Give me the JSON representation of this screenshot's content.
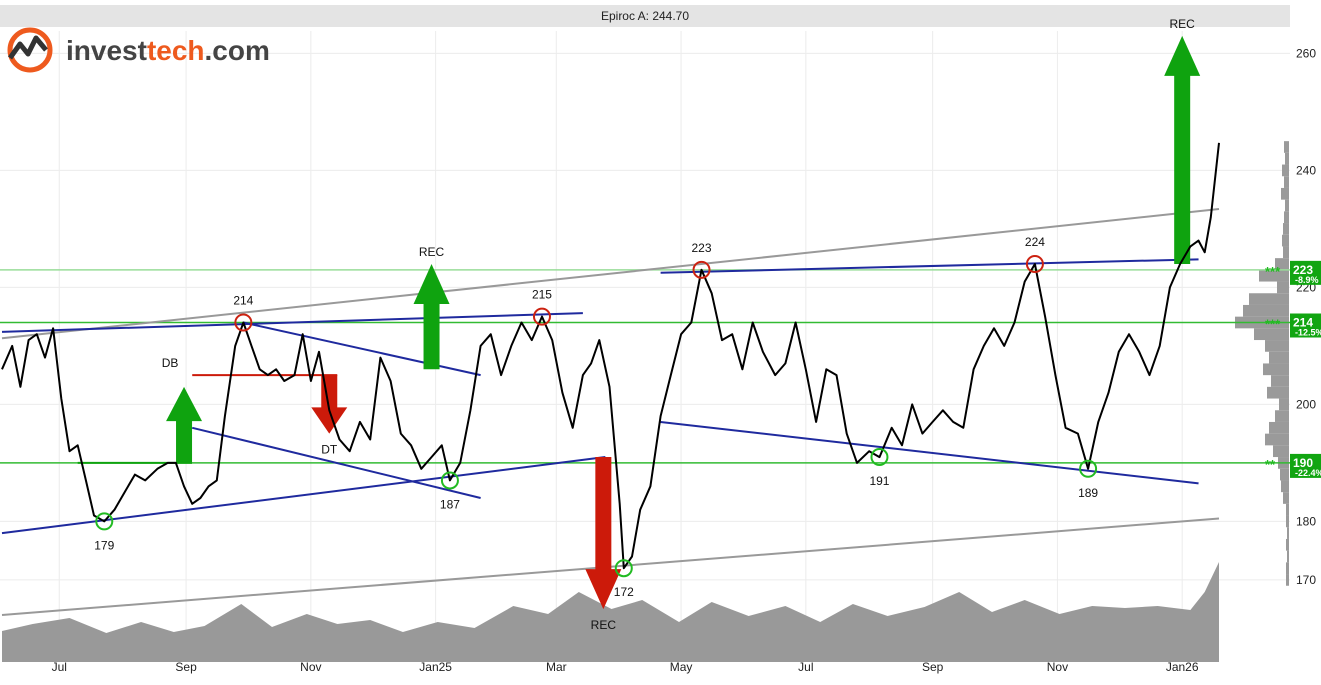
{
  "header": {
    "title": "Epiroc A: 244.70"
  },
  "logo": {
    "text_prefix": "invest",
    "text_accent": "tech",
    "text_suffix": ".com"
  },
  "colors": {
    "price": "#000000",
    "trend_blue": "#1f2a9e",
    "channel_gray": "#999999",
    "support_green": "#22bb22",
    "resist_red": "#cc2211",
    "arrow_green": "#0fa30f",
    "arrow_red": "#cc1a0a",
    "volume": "#999999",
    "logo_orange": "#ee5a1e"
  },
  "chart_data": {
    "type": "line",
    "title": "Epiroc A: 244.70",
    "ylim": [
      162,
      266
    ],
    "y_ticks": [
      170,
      180,
      200,
      220,
      240,
      260
    ],
    "x_ticks": [
      "Jul",
      "Sep",
      "Nov",
      "Jan25",
      "Mar",
      "May",
      "Jul",
      "Sep",
      "Nov",
      "Jan26"
    ],
    "x_tick_dates": [
      "2024-07-01",
      "2024-09-01",
      "2024-11-01",
      "2025-01-01",
      "2025-03-01",
      "2025-05-01",
      "2025-07-01",
      "2025-09-01",
      "2025-11-01",
      "2026-01-01"
    ],
    "series": [
      {
        "values": [
          [
            "2024-06-03",
            206
          ],
          [
            "2024-06-08",
            210
          ],
          [
            "2024-06-12",
            203
          ],
          [
            "2024-06-16",
            211
          ],
          [
            "2024-06-20",
            212
          ],
          [
            "2024-06-24",
            208
          ],
          [
            "2024-06-28",
            213
          ],
          [
            "2024-07-02",
            201
          ],
          [
            "2024-07-06",
            192
          ],
          [
            "2024-07-10",
            193
          ],
          [
            "2024-07-14",
            187
          ],
          [
            "2024-07-18",
            181
          ],
          [
            "2024-07-23",
            180
          ],
          [
            "2024-07-28",
            182
          ],
          [
            "2024-08-02",
            185
          ],
          [
            "2024-08-07",
            188
          ],
          [
            "2024-08-12",
            187
          ],
          [
            "2024-08-18",
            189
          ],
          [
            "2024-08-23",
            190
          ],
          [
            "2024-08-27",
            190
          ],
          [
            "2024-08-31",
            186
          ],
          [
            "2024-09-04",
            183
          ],
          [
            "2024-09-08",
            184
          ],
          [
            "2024-09-12",
            186
          ],
          [
            "2024-09-16",
            187
          ],
          [
            "2024-09-20",
            198
          ],
          [
            "2024-09-25",
            210
          ],
          [
            "2024-09-29",
            214
          ],
          [
            "2024-10-03",
            210
          ],
          [
            "2024-10-07",
            206
          ],
          [
            "2024-10-11",
            205
          ],
          [
            "2024-10-15",
            206
          ],
          [
            "2024-10-19",
            204
          ],
          [
            "2024-10-24",
            205
          ],
          [
            "2024-10-28",
            212
          ],
          [
            "2024-11-01",
            204
          ],
          [
            "2024-11-05",
            209
          ],
          [
            "2024-11-10",
            199
          ],
          [
            "2024-11-15",
            194
          ],
          [
            "2024-11-20",
            192
          ],
          [
            "2024-11-25",
            197
          ],
          [
            "2024-11-30",
            194
          ],
          [
            "2024-12-05",
            208
          ],
          [
            "2024-12-10",
            204
          ],
          [
            "2024-12-15",
            195
          ],
          [
            "2024-12-20",
            193
          ],
          [
            "2024-12-25",
            189
          ],
          [
            "2024-12-30",
            191
          ],
          [
            "2025-01-04",
            193
          ],
          [
            "2025-01-08",
            187
          ],
          [
            "2025-01-13",
            190
          ],
          [
            "2025-01-18",
            199
          ],
          [
            "2025-01-23",
            210
          ],
          [
            "2025-01-28",
            212
          ],
          [
            "2025-02-02",
            205
          ],
          [
            "2025-02-07",
            210
          ],
          [
            "2025-02-12",
            214
          ],
          [
            "2025-02-17",
            211
          ],
          [
            "2025-02-22",
            215
          ],
          [
            "2025-02-27",
            211
          ],
          [
            "2025-03-04",
            202
          ],
          [
            "2025-03-09",
            196
          ],
          [
            "2025-03-14",
            205
          ],
          [
            "2025-03-18",
            207
          ],
          [
            "2025-03-22",
            211
          ],
          [
            "2025-03-27",
            203
          ],
          [
            "2025-04-01",
            183
          ],
          [
            "2025-04-03",
            172
          ],
          [
            "2025-04-07",
            174
          ],
          [
            "2025-04-11",
            182
          ],
          [
            "2025-04-16",
            186
          ],
          [
            "2025-04-21",
            198
          ],
          [
            "2025-04-26",
            205
          ],
          [
            "2025-05-01",
            212
          ],
          [
            "2025-05-06",
            214
          ],
          [
            "2025-05-11",
            223
          ],
          [
            "2025-05-16",
            219
          ],
          [
            "2025-05-21",
            211
          ],
          [
            "2025-05-26",
            212
          ],
          [
            "2025-05-31",
            206
          ],
          [
            "2025-06-05",
            214
          ],
          [
            "2025-06-10",
            209
          ],
          [
            "2025-06-16",
            205
          ],
          [
            "2025-06-21",
            207
          ],
          [
            "2025-06-26",
            214
          ],
          [
            "2025-07-01",
            206
          ],
          [
            "2025-07-06",
            197
          ],
          [
            "2025-07-11",
            206
          ],
          [
            "2025-07-16",
            205
          ],
          [
            "2025-07-21",
            195
          ],
          [
            "2025-07-26",
            190
          ],
          [
            "2025-08-01",
            192
          ],
          [
            "2025-08-06",
            191
          ],
          [
            "2025-08-12",
            196
          ],
          [
            "2025-08-17",
            193
          ],
          [
            "2025-08-22",
            200
          ],
          [
            "2025-08-27",
            195
          ],
          [
            "2025-09-01",
            197
          ],
          [
            "2025-09-06",
            199
          ],
          [
            "2025-09-11",
            197
          ],
          [
            "2025-09-16",
            196
          ],
          [
            "2025-09-21",
            206
          ],
          [
            "2025-09-26",
            210
          ],
          [
            "2025-10-01",
            213
          ],
          [
            "2025-10-06",
            210
          ],
          [
            "2025-10-11",
            214
          ],
          [
            "2025-10-16",
            221
          ],
          [
            "2025-10-21",
            224
          ],
          [
            "2025-10-26",
            215
          ],
          [
            "2025-10-31",
            205
          ],
          [
            "2025-11-05",
            196
          ],
          [
            "2025-11-11",
            195
          ],
          [
            "2025-11-16",
            189
          ],
          [
            "2025-11-21",
            197
          ],
          [
            "2025-11-26",
            202
          ],
          [
            "2025-12-01",
            209
          ],
          [
            "2025-12-06",
            212
          ],
          [
            "2025-12-11",
            209
          ],
          [
            "2025-12-16",
            205
          ],
          [
            "2025-12-21",
            210
          ],
          [
            "2025-12-26",
            220
          ],
          [
            "2025-12-31",
            224
          ],
          [
            "2026-01-05",
            227
          ],
          [
            "2026-01-09",
            228
          ],
          [
            "2026-01-12",
            226
          ],
          [
            "2026-01-15",
            232
          ],
          [
            "2026-01-19",
            244.7
          ]
        ]
      }
    ],
    "volume": [
      [
        "2024-06-03",
        0.31
      ],
      [
        "2024-06-18",
        0.38
      ],
      [
        "2024-07-06",
        0.44
      ],
      [
        "2024-07-24",
        0.29
      ],
      [
        "2024-08-10",
        0.4
      ],
      [
        "2024-08-26",
        0.3
      ],
      [
        "2024-09-10",
        0.36
      ],
      [
        "2024-09-28",
        0.58
      ],
      [
        "2024-10-13",
        0.35
      ],
      [
        "2024-10-30",
        0.48
      ],
      [
        "2024-11-14",
        0.38
      ],
      [
        "2024-11-30",
        0.42
      ],
      [
        "2024-12-16",
        0.3
      ],
      [
        "2025-01-02",
        0.4
      ],
      [
        "2025-01-20",
        0.34
      ],
      [
        "2025-02-08",
        0.56
      ],
      [
        "2025-02-25",
        0.48
      ],
      [
        "2025-03-12",
        0.7
      ],
      [
        "2025-03-28",
        0.53
      ],
      [
        "2025-04-12",
        0.62
      ],
      [
        "2025-04-30",
        0.4
      ],
      [
        "2025-05-16",
        0.6
      ],
      [
        "2025-06-03",
        0.46
      ],
      [
        "2025-06-21",
        0.56
      ],
      [
        "2025-07-08",
        0.4
      ],
      [
        "2025-07-24",
        0.58
      ],
      [
        "2025-08-10",
        0.46
      ],
      [
        "2025-08-28",
        0.55
      ],
      [
        "2025-09-14",
        0.7
      ],
      [
        "2025-09-30",
        0.5
      ],
      [
        "2025-10-16",
        0.62
      ],
      [
        "2025-11-02",
        0.48
      ],
      [
        "2025-11-18",
        0.56
      ],
      [
        "2025-12-04",
        0.54
      ],
      [
        "2025-12-20",
        0.56
      ],
      [
        "2026-01-05",
        0.52
      ],
      [
        "2026-01-12",
        0.7
      ],
      [
        "2026-01-19",
        1.0
      ]
    ],
    "volume_profile": [
      [
        170,
        3
      ],
      [
        172,
        3
      ],
      [
        174,
        2
      ],
      [
        176,
        3
      ],
      [
        178,
        2
      ],
      [
        180,
        3
      ],
      [
        182,
        3
      ],
      [
        184,
        6
      ],
      [
        186,
        8
      ],
      [
        188,
        9
      ],
      [
        190,
        11
      ],
      [
        192,
        16
      ],
      [
        194,
        24
      ],
      [
        196,
        20
      ],
      [
        198,
        14
      ],
      [
        200,
        10
      ],
      [
        202,
        22
      ],
      [
        204,
        18
      ],
      [
        206,
        26
      ],
      [
        208,
        20
      ],
      [
        210,
        24
      ],
      [
        212,
        35
      ],
      [
        214,
        54
      ],
      [
        216,
        46
      ],
      [
        218,
        40
      ],
      [
        220,
        12
      ],
      [
        222,
        30
      ],
      [
        224,
        14
      ],
      [
        226,
        6
      ],
      [
        228,
        7
      ],
      [
        230,
        6
      ],
      [
        232,
        5
      ],
      [
        234,
        4
      ],
      [
        236,
        8
      ],
      [
        238,
        5
      ],
      [
        240,
        7
      ],
      [
        242,
        4
      ],
      [
        244,
        5
      ]
    ],
    "channel_lines": [
      {
        "from": [
          "2024-06-03",
          211.3
        ],
        "to": [
          "2026-01-19",
          233.4
        ]
      },
      {
        "from": [
          "2024-06-03",
          164.0
        ],
        "to": [
          "2026-01-19",
          180.5
        ]
      }
    ],
    "trend_lines": [
      {
        "from": [
          "2024-06-03",
          212.4
        ],
        "to": [
          "2025-03-14",
          215.6
        ]
      },
      {
        "from": [
          "2024-09-29",
          214.0
        ],
        "to": [
          "2025-01-23",
          205.0
        ]
      },
      {
        "from": [
          "2024-09-04",
          196.0
        ],
        "to": [
          "2025-01-23",
          184.0
        ]
      },
      {
        "from": [
          "2024-06-03",
          178.0
        ],
        "to": [
          "2025-03-25",
          191.0
        ]
      },
      {
        "from": [
          "2025-04-21",
          197.0
        ],
        "to": [
          "2026-01-09",
          186.5
        ]
      },
      {
        "from": [
          "2025-04-21",
          222.5
        ],
        "to": [
          "2026-01-09",
          224.8
        ]
      }
    ],
    "support_resistance": [
      {
        "value": 223,
        "label": "223",
        "pct": "-8.9%",
        "stars": "***",
        "line_color": "#99dd99"
      },
      {
        "value": 214,
        "label": "214",
        "pct": "-12.5%",
        "stars": "***",
        "line_color": "#33bb33"
      },
      {
        "value": 190,
        "label": "190",
        "pct": "-22.4%",
        "stars": "**",
        "line_color": "#33bb33"
      }
    ],
    "extrema": [
      {
        "date": "2024-07-23",
        "value": 180,
        "label": "179",
        "kind": "low"
      },
      {
        "date": "2024-09-29",
        "value": 214,
        "label": "214",
        "kind": "high"
      },
      {
        "date": "2025-01-08",
        "value": 187,
        "label": "187",
        "kind": "low"
      },
      {
        "date": "2025-02-22",
        "value": 215,
        "label": "215",
        "kind": "high"
      },
      {
        "date": "2025-04-03",
        "value": 172,
        "label": "172",
        "kind": "low"
      },
      {
        "date": "2025-05-11",
        "value": 223,
        "label": "223",
        "kind": "high"
      },
      {
        "date": "2025-08-06",
        "value": 191,
        "label": "191",
        "kind": "low"
      },
      {
        "date": "2025-10-21",
        "value": 224,
        "label": "224",
        "kind": "high"
      },
      {
        "date": "2025-11-16",
        "value": 189,
        "label": "189",
        "kind": "low"
      }
    ],
    "signals": [
      {
        "label": "DB",
        "direction": "up",
        "date": "2024-08-31",
        "from": 190,
        "to": 203,
        "baseline_from": "2024-07-10"
      },
      {
        "label": "DT",
        "direction": "down",
        "date": "2024-11-10",
        "from": 205,
        "to": 195,
        "baseline_from": "2024-09-04"
      },
      {
        "label": "REC",
        "direction": "up",
        "date": "2024-12-30",
        "from": 206,
        "to": 224
      },
      {
        "label": "REC",
        "direction": "down",
        "date": "2025-03-24",
        "from": 191,
        "to": 165
      },
      {
        "label": "REC",
        "direction": "up",
        "date": "2026-01-01",
        "from": 224,
        "to": 263
      }
    ]
  }
}
